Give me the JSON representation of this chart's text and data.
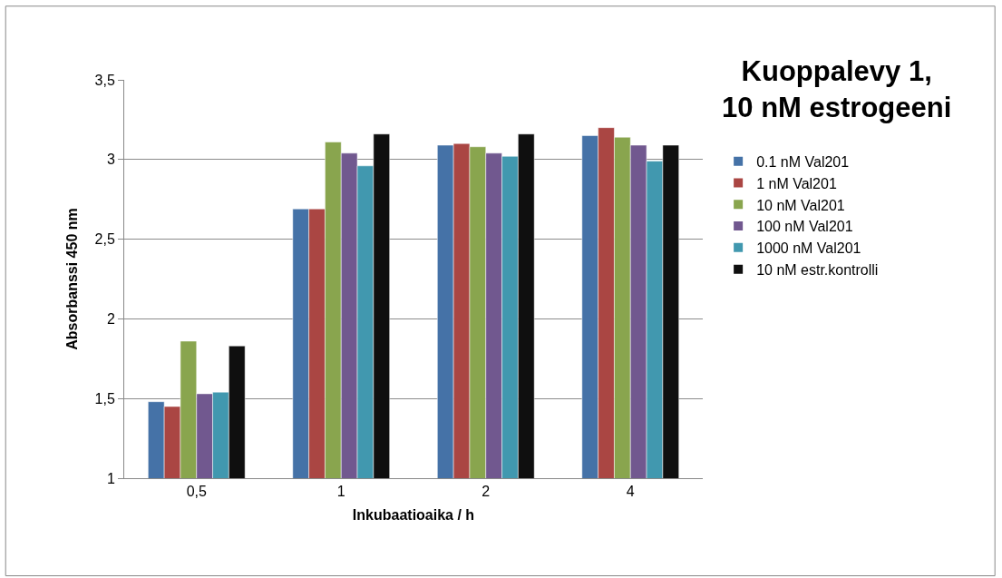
{
  "chart_data": {
    "type": "bar",
    "title": "Kuoppalevy 1,\n10 nM estrogeeni",
    "xlabel": "Inkubaatioaika / h",
    "ylabel": "Absorbanssi 450 nm",
    "categories": [
      "0,5",
      "1",
      "2",
      "4"
    ],
    "series": [
      {
        "name": "0.1 nM Val201",
        "color": "#4572a7",
        "values": [
          1.48,
          2.69,
          3.09,
          3.15
        ]
      },
      {
        "name": "1 nM Val201",
        "color": "#aa4643",
        "values": [
          1.45,
          2.69,
          3.1,
          3.2
        ]
      },
      {
        "name": "10 nM Val201",
        "color": "#89a54e",
        "values": [
          1.86,
          3.11,
          3.08,
          3.14
        ]
      },
      {
        "name": "100 nM Val201",
        "color": "#71588f",
        "values": [
          1.53,
          3.04,
          3.04,
          3.09
        ]
      },
      {
        "name": "1000 nM Val201",
        "color": "#4198af",
        "values": [
          1.54,
          2.96,
          3.02,
          2.99
        ]
      },
      {
        "name": "10 nM estr.kontrolli",
        "color": "#0f0f0f",
        "values": [
          1.83,
          3.16,
          3.16,
          3.09
        ]
      }
    ],
    "ylim": [
      1,
      3.5
    ],
    "yticks": [
      {
        "value": 1,
        "label": "1"
      },
      {
        "value": 1.5,
        "label": "1,5"
      },
      {
        "value": 2,
        "label": "2"
      },
      {
        "value": 2.5,
        "label": "2,5"
      },
      {
        "value": 3,
        "label": "3"
      },
      {
        "value": 3.5,
        "label": "3,5"
      }
    ],
    "grid": "y",
    "legend": "right"
  }
}
